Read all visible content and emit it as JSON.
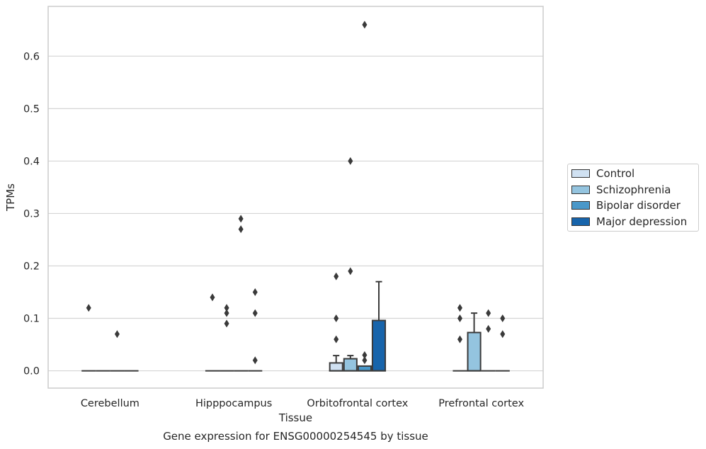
{
  "chart_data": {
    "type": "boxplot",
    "title": "",
    "xlabel": "Tissue",
    "ylabel": "TPMs",
    "caption": "Gene expression for ENSG00000254545 by tissue",
    "ylim": [
      -0.033,
      0.695
    ],
    "yticks": [
      0.0,
      0.1,
      0.2,
      0.3,
      0.4,
      0.5,
      0.6
    ],
    "ytick_labels": [
      "0.0",
      "0.1",
      "0.2",
      "0.3",
      "0.4",
      "0.5",
      "0.6"
    ],
    "grid": true,
    "legend_position": "right",
    "categories": [
      "Cerebellum",
      "Hipppocampus",
      "Orbitofrontal cortex",
      "Prefrontal cortex"
    ],
    "series": [
      {
        "name": "Control",
        "color": "#d0e1f2",
        "boxes": [
          {
            "q1": 0,
            "median": 0,
            "q3": 0,
            "whisker_low": 0,
            "whisker_high": 0,
            "outliers": [
              0.12
            ]
          },
          {
            "q1": 0,
            "median": 0,
            "q3": 0,
            "whisker_low": 0,
            "whisker_high": 0,
            "outliers": [
              0.14
            ]
          },
          {
            "q1": 0,
            "median": 0,
            "q3": 0.015,
            "whisker_low": 0,
            "whisker_high": 0.029,
            "outliers": [
              0.06,
              0.1,
              0.18
            ]
          },
          {
            "q1": 0,
            "median": 0,
            "q3": 0,
            "whisker_low": 0,
            "whisker_high": 0,
            "outliers": [
              0.06,
              0.1,
              0.12
            ]
          }
        ]
      },
      {
        "name": "Schizophrenia",
        "color": "#94c4df",
        "boxes": [
          {
            "q1": 0,
            "median": 0,
            "q3": 0,
            "whisker_low": 0,
            "whisker_high": 0,
            "outliers": []
          },
          {
            "q1": 0,
            "median": 0,
            "q3": 0,
            "whisker_low": 0,
            "whisker_high": 0,
            "outliers": [
              0.09,
              0.11,
              0.12
            ]
          },
          {
            "q1": 0,
            "median": 0,
            "q3": 0.023,
            "whisker_low": 0,
            "whisker_high": 0.029,
            "outliers": [
              0.19,
              0.4
            ]
          },
          {
            "q1": 0,
            "median": 0,
            "q3": 0.073,
            "whisker_low": 0,
            "whisker_high": 0.11,
            "outliers": []
          }
        ]
      },
      {
        "name": "Bipolar disorder",
        "color": "#4a98c9",
        "boxes": [
          {
            "q1": 0,
            "median": 0,
            "q3": 0,
            "whisker_low": 0,
            "whisker_high": 0,
            "outliers": [
              0.07
            ]
          },
          {
            "q1": 0,
            "median": 0,
            "q3": 0,
            "whisker_low": 0,
            "whisker_high": 0,
            "outliers": [
              0.27,
              0.29
            ]
          },
          {
            "q1": 0,
            "median": 0,
            "q3": 0.009,
            "whisker_low": 0,
            "whisker_high": 0.009,
            "outliers": [
              0.02,
              0.03,
              0.66
            ]
          },
          {
            "q1": 0,
            "median": 0,
            "q3": 0,
            "whisker_low": 0,
            "whisker_high": 0,
            "outliers": [
              0.08,
              0.11
            ]
          }
        ]
      },
      {
        "name": "Major depression",
        "color": "#1764ab",
        "boxes": [
          {
            "q1": 0,
            "median": 0,
            "q3": 0,
            "whisker_low": 0,
            "whisker_high": 0,
            "outliers": []
          },
          {
            "q1": 0,
            "median": 0,
            "q3": 0,
            "whisker_low": 0,
            "whisker_high": 0,
            "outliers": [
              0.02,
              0.11,
              0.15
            ]
          },
          {
            "q1": 0,
            "median": 0,
            "q3": 0.096,
            "whisker_low": 0,
            "whisker_high": 0.17,
            "outliers": []
          },
          {
            "q1": 0,
            "median": 0,
            "q3": 0,
            "whisker_low": 0,
            "whisker_high": 0,
            "outliers": [
              0.07,
              0.1
            ]
          }
        ]
      }
    ]
  }
}
